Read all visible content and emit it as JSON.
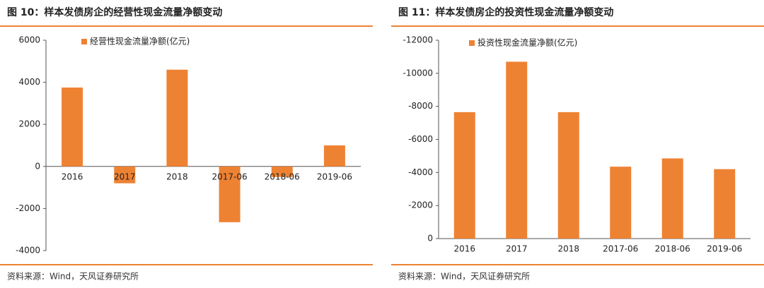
{
  "chart_data": [
    {
      "type": "bar",
      "title": "图 10：样本发债房企的经营性现金流量净额变动",
      "source": "资料来源：Wind，天风证券研究所",
      "categories": [
        "2016",
        "2017",
        "2018",
        "2017-06",
        "2018-06",
        "2019-06"
      ],
      "series": [
        {
          "name": "经营性现金流量净额(亿元)",
          "color": "#ee8233",
          "values": [
            3750,
            -800,
            4600,
            -2650,
            -500,
            1000
          ]
        }
      ],
      "ylim": [
        -4000,
        6000
      ],
      "yticks": [
        -4000,
        -2000,
        0,
        2000,
        4000,
        6000
      ]
    },
    {
      "type": "bar",
      "title": "图 11：样本发债房企的投资性现金流量净额变动",
      "source": "资料来源：Wind，天风证券研究所",
      "categories": [
        "2016",
        "2017",
        "2018",
        "2017-06",
        "2018-06",
        "2019-06"
      ],
      "series": [
        {
          "name": "投资性现金流量净额(亿元)",
          "color": "#ee8233",
          "values": [
            -7650,
            -10700,
            -7650,
            -4350,
            -4850,
            -4200
          ]
        }
      ],
      "ylim": [
        0,
        -12000
      ],
      "yticks": [
        0,
        -2000,
        -4000,
        -6000,
        -8000,
        -10000,
        -12000
      ]
    }
  ]
}
